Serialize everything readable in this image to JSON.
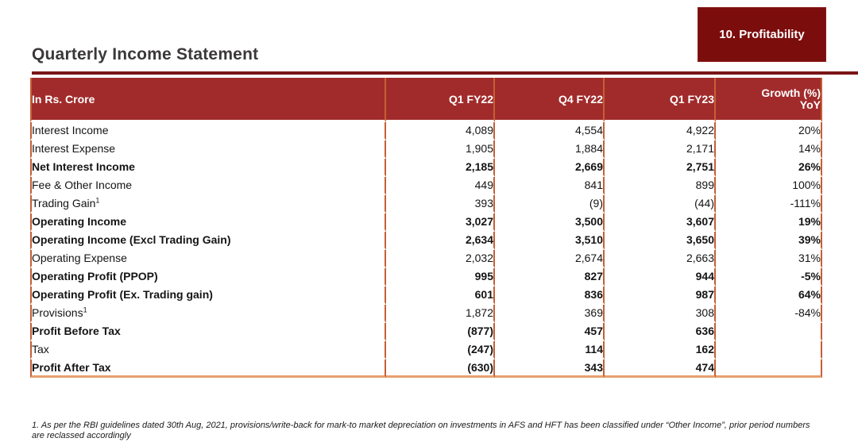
{
  "slide": {
    "title": "Quarterly Income Statement",
    "badge_label": "10. Profitability",
    "footnote": "1. As per the RBI guidelines dated 30th Aug, 2021, provisions/write-back for mark-to market depreciation on investments in AFS and HFT has been classified under “Other Income”, prior period numbers are reclassed accordingly"
  },
  "table": {
    "header": {
      "col0": "In Rs. Crore",
      "col1": "Q1 FY22",
      "col2": "Q4 FY22",
      "col3": "Q1 FY23",
      "col4_line1": "Growth (%)",
      "col4_line2": "YoY"
    },
    "rows": [
      {
        "label": "Interest Income",
        "sup": "",
        "values": [
          "4,089",
          "4,554",
          "4,922",
          "20%"
        ],
        "bg": "white",
        "label_bold": false,
        "values_bold": false
      },
      {
        "label": "Interest Expense",
        "sup": "",
        "values": [
          "1,905",
          "1,884",
          "2,171",
          "14%"
        ],
        "bg": "white",
        "label_bold": false,
        "values_bold": false
      },
      {
        "label": "Net Interest Income",
        "sup": "",
        "values": [
          "2,185",
          "2,669",
          "2,751",
          "26%"
        ],
        "bg": "peach",
        "label_bold": true,
        "values_bold": true
      },
      {
        "label": "Fee & Other Income",
        "sup": "",
        "values": [
          "449",
          "841",
          "899",
          "100%"
        ],
        "bg": "white",
        "label_bold": false,
        "values_bold": false
      },
      {
        "label": "Trading Gain",
        "sup": "1",
        "values": [
          "393",
          "(9)",
          "(44)",
          "-111%"
        ],
        "bg": "white",
        "label_bold": false,
        "values_bold": false
      },
      {
        "label": "Operating Income",
        "sup": "",
        "values": [
          "3,027",
          "3,500",
          "3,607",
          "19%"
        ],
        "bg": "peach",
        "label_bold": true,
        "values_bold": true
      },
      {
        "label": "Operating Income (Excl Trading Gain)",
        "sup": "",
        "values": [
          "2,634",
          "3,510",
          "3,650",
          "39%"
        ],
        "bg": "yellow",
        "label_bold": true,
        "values_bold": true
      },
      {
        "label": "Operating Expense",
        "sup": "",
        "values": [
          "2,032",
          "2,674",
          "2,663",
          "31%"
        ],
        "bg": "white",
        "label_bold": false,
        "values_bold": false
      },
      {
        "label": "Operating Profit (PPOP)",
        "sup": "",
        "values": [
          "995",
          "827",
          "944",
          "-5%"
        ],
        "bg": "peach",
        "label_bold": true,
        "values_bold": true
      },
      {
        "label": "Operating Profit (Ex. Trading gain)",
        "sup": "",
        "values": [
          "601",
          "836",
          "987",
          "64%"
        ],
        "bg": "yellow",
        "label_bold": true,
        "values_bold": true
      },
      {
        "label": "Provisions",
        "sup": "1",
        "values": [
          "1,872",
          "369",
          "308",
          "-84%"
        ],
        "bg": "white",
        "label_bold": false,
        "values_bold": false
      },
      {
        "label": "Profit Before Tax",
        "sup": "",
        "values": [
          "(877)",
          "457",
          "636",
          ""
        ],
        "bg": "peach",
        "label_bold": true,
        "values_bold": true
      },
      {
        "label": "Tax",
        "sup": "",
        "values": [
          "(247)",
          "114",
          "162",
          ""
        ],
        "bg": "white",
        "label_bold": false,
        "values_bold": true
      },
      {
        "label": "Profit After Tax",
        "sup": "",
        "values": [
          "(630)",
          "343",
          "474",
          ""
        ],
        "bg": "orange",
        "label_bold": true,
        "values_bold": true
      }
    ]
  },
  "colors": {
    "header_bg": "#A12B2B",
    "badge_bg": "#7B0D0D",
    "title_rule": "#7B1517",
    "row_peach": "#FBE5D6",
    "row_yellow": "#FFF2CC",
    "row_orange": "#F4B183",
    "grid_orange": "#C55F35"
  }
}
